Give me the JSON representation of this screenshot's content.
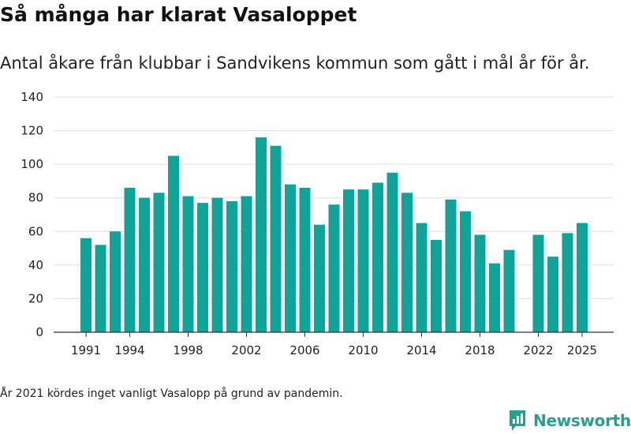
{
  "header": {
    "title": "Så många har klarat Vasaloppet",
    "subtitle": "Antal åkare från klubbar i Sandvikens kommun som gått i mål år för år."
  },
  "colors": {
    "bar": "#0fa39a",
    "grid": "#dddddd",
    "axis": "#333333",
    "brand": "#2a9d8f"
  },
  "chart_data": {
    "type": "bar",
    "title": "Så många har klarat Vasaloppet",
    "xlabel": "",
    "ylabel": "",
    "ylim": [
      0,
      140
    ],
    "yticks": [
      0,
      20,
      40,
      60,
      80,
      100,
      120,
      140
    ],
    "xtick_labels": [
      "1991",
      "1994",
      "1998",
      "2002",
      "2006",
      "2010",
      "2014",
      "2018",
      "2022",
      "2025"
    ],
    "grid": true,
    "categories": [
      1991,
      1992,
      1993,
      1994,
      1995,
      1996,
      1997,
      1998,
      1999,
      2000,
      2001,
      2002,
      2003,
      2004,
      2005,
      2006,
      2007,
      2008,
      2009,
      2010,
      2011,
      2012,
      2013,
      2014,
      2015,
      2016,
      2017,
      2018,
      2019,
      2020,
      2021,
      2022,
      2023,
      2024,
      2025
    ],
    "values": [
      56,
      52,
      60,
      86,
      80,
      83,
      105,
      81,
      77,
      80,
      78,
      81,
      116,
      111,
      88,
      86,
      64,
      76,
      85,
      85,
      89,
      95,
      83,
      65,
      55,
      79,
      72,
      58,
      41,
      49,
      null,
      58,
      45,
      59,
      65
    ]
  },
  "footnote": "År 2021 kördes inget vanligt Vasalopp på grund av pandemin.",
  "brand": {
    "name": "Newsworthy",
    "icon": "newsworthy-logo-icon"
  }
}
